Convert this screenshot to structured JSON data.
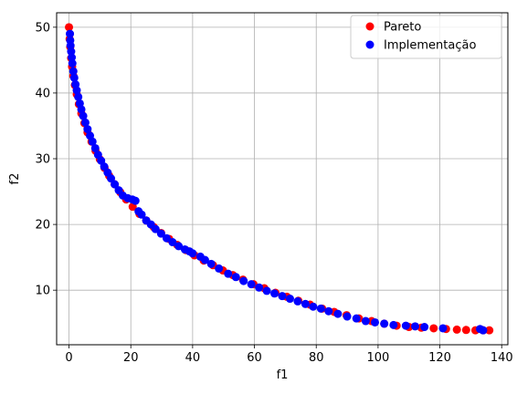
{
  "chart_data": {
    "type": "scatter",
    "title": "",
    "xlabel": "f1",
    "ylabel": "f2",
    "xlim": [
      -4,
      142
    ],
    "ylim": [
      1.7,
      52.2
    ],
    "xticks": [
      0,
      20,
      40,
      60,
      80,
      100,
      120,
      140
    ],
    "yticks": [
      10,
      20,
      30,
      40,
      50
    ],
    "grid": true,
    "legend_position": "top-right",
    "series": [
      {
        "name": "Pareto",
        "color": "#ff0000",
        "marker": "circle",
        "points": [
          [
            0.0,
            50.0
          ],
          [
            0.2,
            48.2
          ],
          [
            0.4,
            47.0
          ],
          [
            0.7,
            45.3
          ],
          [
            1.0,
            44.0
          ],
          [
            1.4,
            42.6
          ],
          [
            1.9,
            41.2
          ],
          [
            2.5,
            39.8
          ],
          [
            3.2,
            38.3
          ],
          [
            4.0,
            36.9
          ],
          [
            5.0,
            35.4
          ],
          [
            6.0,
            34.0
          ],
          [
            7.3,
            32.6
          ],
          [
            8.6,
            31.2
          ],
          [
            10.0,
            29.9
          ],
          [
            11.5,
            28.6
          ],
          [
            13.0,
            27.4
          ],
          [
            14.8,
            26.1
          ],
          [
            16.6,
            24.9
          ],
          [
            18.5,
            23.8
          ],
          [
            20.6,
            22.7
          ],
          [
            22.8,
            21.6
          ],
          [
            25.0,
            20.6
          ],
          [
            27.4,
            19.6
          ],
          [
            29.8,
            18.7
          ],
          [
            32.4,
            17.8
          ],
          [
            35.0,
            16.9
          ],
          [
            37.8,
            16.1
          ],
          [
            40.6,
            15.3
          ],
          [
            43.6,
            14.5
          ],
          [
            46.6,
            13.8
          ],
          [
            49.8,
            13.0
          ],
          [
            53.0,
            12.3
          ],
          [
            56.3,
            11.6
          ],
          [
            59.7,
            10.9
          ],
          [
            63.2,
            10.3
          ],
          [
            66.8,
            9.6
          ],
          [
            70.5,
            9.0
          ],
          [
            74.2,
            8.4
          ],
          [
            78.0,
            7.8
          ],
          [
            81.9,
            7.2
          ],
          [
            85.8,
            6.7
          ],
          [
            89.8,
            6.2
          ],
          [
            93.8,
            5.7
          ],
          [
            97.9,
            5.3
          ],
          [
            102.0,
            4.9
          ],
          [
            106.0,
            4.6
          ],
          [
            110.0,
            4.4
          ],
          [
            114.0,
            4.3
          ],
          [
            118.0,
            4.2
          ],
          [
            122.0,
            4.1
          ],
          [
            125.5,
            4.0
          ],
          [
            128.5,
            3.95
          ],
          [
            131.5,
            3.9
          ],
          [
            134.0,
            3.9
          ],
          [
            136.0,
            3.9
          ]
        ]
      },
      {
        "name": "Implementação",
        "color": "#0000ff",
        "marker": "circle",
        "points": [
          [
            0.3,
            49.0
          ],
          [
            0.4,
            48.0
          ],
          [
            0.5,
            47.2
          ],
          [
            0.7,
            46.3
          ],
          [
            0.9,
            45.4
          ],
          [
            1.1,
            44.5
          ],
          [
            1.4,
            43.3
          ],
          [
            1.7,
            42.3
          ],
          [
            2.1,
            41.3
          ],
          [
            2.5,
            40.4
          ],
          [
            3.0,
            39.4
          ],
          [
            3.5,
            38.4
          ],
          [
            4.0,
            37.5
          ],
          [
            4.6,
            36.5
          ],
          [
            5.3,
            35.5
          ],
          [
            6.0,
            34.5
          ],
          [
            6.8,
            33.5
          ],
          [
            7.6,
            32.6
          ],
          [
            8.5,
            31.6
          ],
          [
            9.4,
            30.6
          ],
          [
            10.4,
            29.7
          ],
          [
            11.4,
            28.8
          ],
          [
            12.5,
            27.9
          ],
          [
            13.6,
            27.0
          ],
          [
            14.8,
            26.1
          ],
          [
            16.1,
            25.2
          ],
          [
            17.4,
            24.4
          ],
          [
            19.0,
            24.0
          ],
          [
            20.5,
            23.8
          ],
          [
            21.5,
            23.6
          ],
          [
            22.5,
            22.0
          ],
          [
            23.5,
            21.5
          ],
          [
            25.0,
            20.6
          ],
          [
            26.5,
            20.0
          ],
          [
            28.0,
            19.3
          ],
          [
            29.8,
            18.6
          ],
          [
            31.6,
            17.9
          ],
          [
            33.5,
            17.3
          ],
          [
            35.5,
            16.7
          ],
          [
            37.5,
            16.2
          ],
          [
            39.0,
            15.9
          ],
          [
            40.0,
            15.6
          ],
          [
            42.5,
            15.1
          ],
          [
            44.0,
            14.6
          ],
          [
            46.0,
            14.0
          ],
          [
            48.5,
            13.3
          ],
          [
            51.5,
            12.5
          ],
          [
            54.0,
            12.0
          ],
          [
            56.5,
            11.4
          ],
          [
            59.0,
            10.9
          ],
          [
            61.5,
            10.4
          ],
          [
            64.0,
            9.9
          ],
          [
            66.5,
            9.5
          ],
          [
            69.0,
            9.1
          ],
          [
            71.5,
            8.7
          ],
          [
            74.0,
            8.3
          ],
          [
            76.5,
            7.9
          ],
          [
            79.0,
            7.5
          ],
          [
            81.5,
            7.2
          ],
          [
            84.0,
            6.8
          ],
          [
            87.0,
            6.4
          ],
          [
            90.0,
            6.0
          ],
          [
            93.0,
            5.7
          ],
          [
            96.0,
            5.3
          ],
          [
            99.0,
            5.1
          ],
          [
            102.0,
            4.9
          ],
          [
            105.0,
            4.7
          ],
          [
            109.0,
            4.6
          ],
          [
            112.0,
            4.5
          ],
          [
            115.0,
            4.4
          ],
          [
            121.0,
            4.2
          ],
          [
            133.0,
            4.1
          ],
          [
            134.0,
            3.9
          ]
        ]
      }
    ]
  }
}
